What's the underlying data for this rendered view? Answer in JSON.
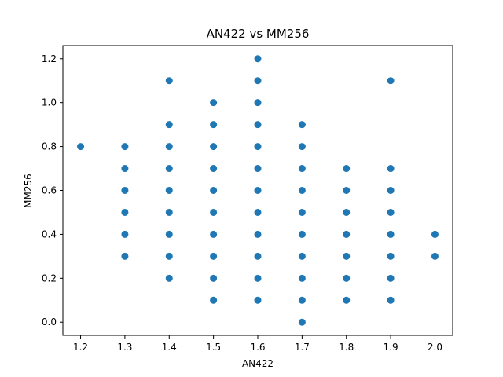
{
  "chart_data": {
    "type": "scatter",
    "title": "AN422 vs MM256",
    "xlabel": "AN422",
    "ylabel": "MM256",
    "xlim": [
      1.16,
      2.04
    ],
    "ylim": [
      -0.06,
      1.26
    ],
    "xticks": [
      1.2,
      1.3,
      1.4,
      1.5,
      1.6,
      1.7,
      1.8,
      1.9,
      2.0
    ],
    "xtick_labels": [
      "1.2",
      "1.3",
      "1.4",
      "1.5",
      "1.6",
      "1.7",
      "1.8",
      "1.9",
      "2.0"
    ],
    "yticks": [
      0.0,
      0.2,
      0.4,
      0.6,
      0.8,
      1.0,
      1.2
    ],
    "ytick_labels": [
      "0.0",
      "0.2",
      "0.4",
      "0.6",
      "0.8",
      "1.0",
      "1.2"
    ],
    "grid": false,
    "legend": "none",
    "marker_color": "#1f77b4",
    "series": [
      {
        "points": [
          [
            1.2,
            0.8
          ],
          [
            1.3,
            0.3
          ],
          [
            1.3,
            0.4
          ],
          [
            1.3,
            0.5
          ],
          [
            1.3,
            0.6
          ],
          [
            1.3,
            0.7
          ],
          [
            1.3,
            0.8
          ],
          [
            1.4,
            0.2
          ],
          [
            1.4,
            0.3
          ],
          [
            1.4,
            0.4
          ],
          [
            1.4,
            0.5
          ],
          [
            1.4,
            0.6
          ],
          [
            1.4,
            0.7
          ],
          [
            1.4,
            0.8
          ],
          [
            1.4,
            0.9
          ],
          [
            1.4,
            1.1
          ],
          [
            1.5,
            0.1
          ],
          [
            1.5,
            0.2
          ],
          [
            1.5,
            0.3
          ],
          [
            1.5,
            0.4
          ],
          [
            1.5,
            0.5
          ],
          [
            1.5,
            0.6
          ],
          [
            1.5,
            0.7
          ],
          [
            1.5,
            0.8
          ],
          [
            1.5,
            0.9
          ],
          [
            1.5,
            1.0
          ],
          [
            1.6,
            0.1
          ],
          [
            1.6,
            0.2
          ],
          [
            1.6,
            0.3
          ],
          [
            1.6,
            0.4
          ],
          [
            1.6,
            0.5
          ],
          [
            1.6,
            0.6
          ],
          [
            1.6,
            0.7
          ],
          [
            1.6,
            0.8
          ],
          [
            1.6,
            0.9
          ],
          [
            1.6,
            1.0
          ],
          [
            1.6,
            1.1
          ],
          [
            1.6,
            1.2
          ],
          [
            1.7,
            0.0
          ],
          [
            1.7,
            0.1
          ],
          [
            1.7,
            0.2
          ],
          [
            1.7,
            0.3
          ],
          [
            1.7,
            0.4
          ],
          [
            1.7,
            0.5
          ],
          [
            1.7,
            0.6
          ],
          [
            1.7,
            0.7
          ],
          [
            1.7,
            0.8
          ],
          [
            1.7,
            0.9
          ],
          [
            1.8,
            0.1
          ],
          [
            1.8,
            0.2
          ],
          [
            1.8,
            0.3
          ],
          [
            1.8,
            0.4
          ],
          [
            1.8,
            0.5
          ],
          [
            1.8,
            0.6
          ],
          [
            1.8,
            0.7
          ],
          [
            1.9,
            0.1
          ],
          [
            1.9,
            0.2
          ],
          [
            1.9,
            0.3
          ],
          [
            1.9,
            0.4
          ],
          [
            1.9,
            0.5
          ],
          [
            1.9,
            0.6
          ],
          [
            1.9,
            0.7
          ],
          [
            1.9,
            1.1
          ],
          [
            2.0,
            0.3
          ],
          [
            2.0,
            0.4
          ]
        ]
      }
    ]
  }
}
